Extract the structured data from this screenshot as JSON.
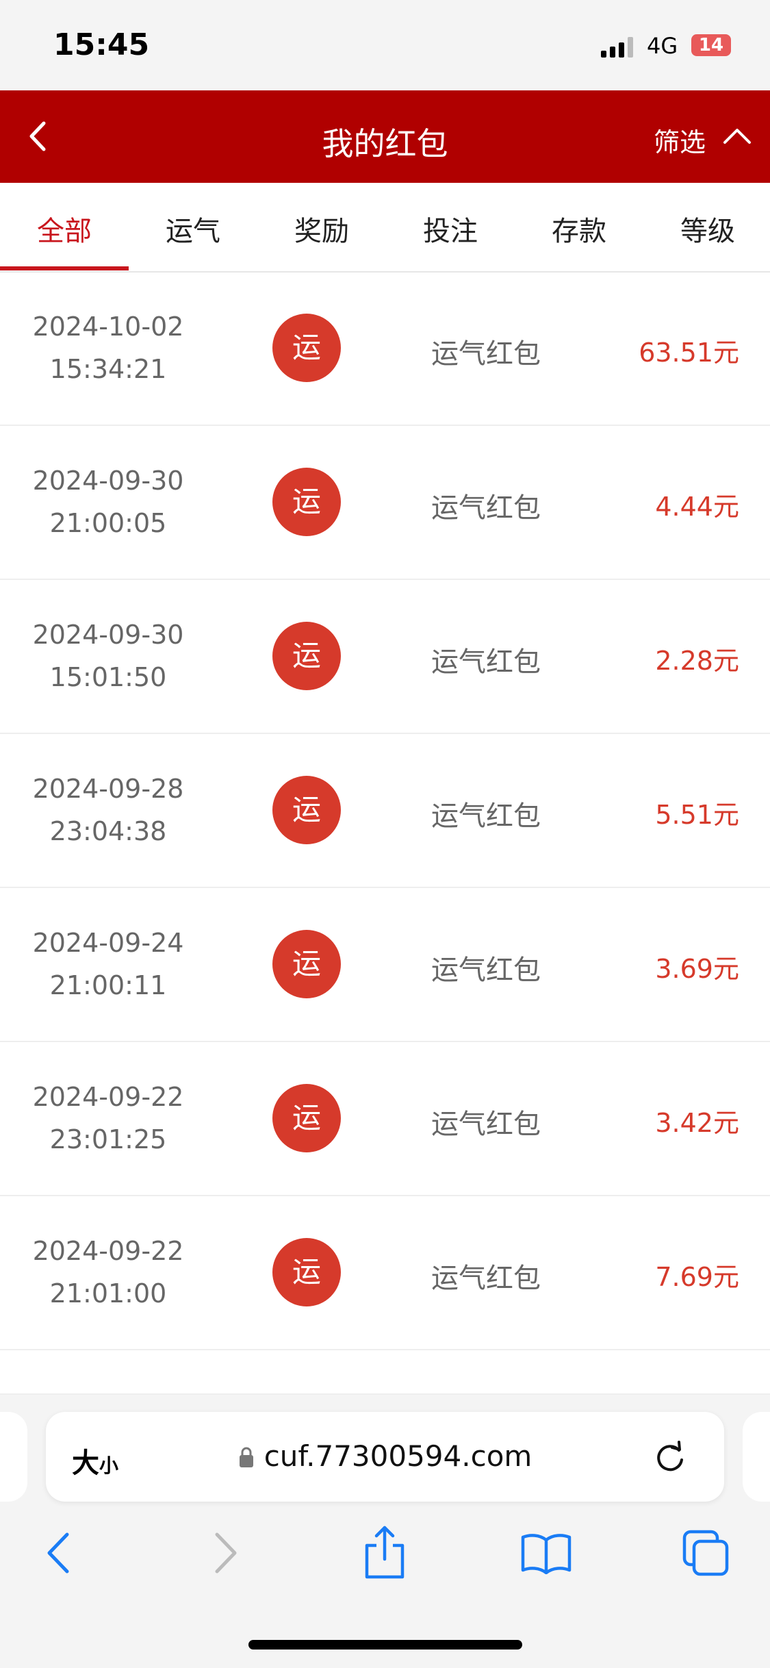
{
  "status": {
    "time": "15:45",
    "network": "4G",
    "battery": "14"
  },
  "header": {
    "title": "我的红包",
    "filter": "筛选"
  },
  "tabs": [
    "全部",
    "运气",
    "奖励",
    "投注",
    "存款",
    "等级"
  ],
  "records": [
    {
      "date": "2024-10-02",
      "time": "15:34:21",
      "icon": "运",
      "type": "运气红包",
      "amount": "63.51元"
    },
    {
      "date": "2024-09-30",
      "time": "21:00:05",
      "icon": "运",
      "type": "运气红包",
      "amount": "4.44元"
    },
    {
      "date": "2024-09-30",
      "time": "15:01:50",
      "icon": "运",
      "type": "运气红包",
      "amount": "2.28元"
    },
    {
      "date": "2024-09-28",
      "time": "23:04:38",
      "icon": "运",
      "type": "运气红包",
      "amount": "5.51元"
    },
    {
      "date": "2024-09-24",
      "time": "21:00:11",
      "icon": "运",
      "type": "运气红包",
      "amount": "3.69元"
    },
    {
      "date": "2024-09-22",
      "time": "23:01:25",
      "icon": "运",
      "type": "运气红包",
      "amount": "3.42元"
    },
    {
      "date": "2024-09-22",
      "time": "21:01:00",
      "icon": "运",
      "type": "运气红包",
      "amount": "7.69元"
    }
  ],
  "browser": {
    "text_size_large": "大",
    "text_size_small": "小",
    "url": "cuf.77300594.com"
  }
}
